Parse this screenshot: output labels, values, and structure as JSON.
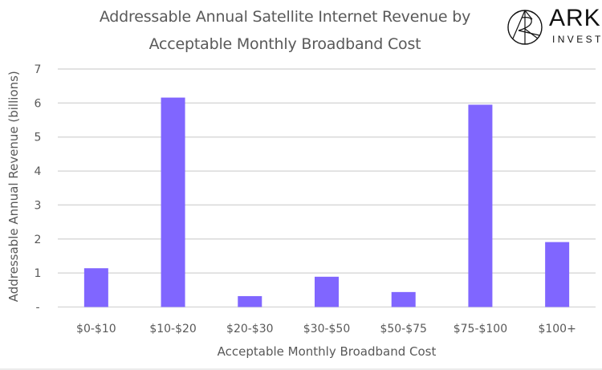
{
  "header": {
    "title_line1": "Addressable Annual Satellite Internet Revenue by",
    "title_line2": "Acceptable Monthly Broadband Cost"
  },
  "logo": {
    "name": "ARK",
    "subtitle": "INVEST",
    "icon": "ark-invest-logo-icon"
  },
  "colors": {
    "bar": "#8066FF",
    "grid": "#D9D9D9",
    "text": "#595959"
  },
  "chart_data": {
    "type": "bar",
    "title": "Addressable Annual Satellite Internet Revenue by Acceptable Monthly Broadband Cost",
    "xlabel": "Acceptable Monthly Broadband Cost",
    "ylabel": "Addressable Annual Revenue (billions)",
    "categories": [
      "$0-$10",
      "$10-$20",
      "$20-$30",
      "$30-$50",
      "$50-$75",
      "$75-$100",
      "$100+"
    ],
    "values": [
      1.14,
      6.16,
      0.32,
      0.89,
      0.44,
      5.95,
      1.91
    ],
    "ylim": [
      0,
      7
    ],
    "yticks": [
      0,
      1,
      2,
      3,
      4,
      5,
      6,
      7
    ],
    "ytick_labels": [
      "-",
      "1",
      "2",
      "3",
      "4",
      "5",
      "6",
      "7"
    ],
    "grid": true,
    "legend": "none"
  }
}
